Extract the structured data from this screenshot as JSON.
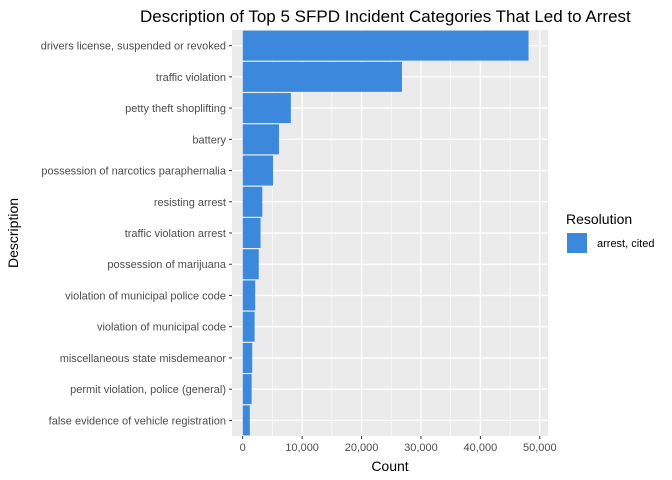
{
  "chart_data": {
    "type": "bar",
    "orientation": "horizontal",
    "title": "Description of Top 5 SFPD Incident Categories That Led to Arrest",
    "xlabel": "Count",
    "ylabel": "Description",
    "xlim": [
      0,
      50000
    ],
    "xticks": [
      0,
      10000,
      20000,
      30000,
      40000,
      50000
    ],
    "xtick_labels": [
      "0",
      "10,000",
      "20,000",
      "30,000",
      "40,000",
      "50,000"
    ],
    "categories": [
      "drivers license, suspended or revoked",
      "traffic violation",
      "petty theft shoplifting",
      "battery",
      "possession of narcotics paraphernalia",
      "resisting arrest",
      "traffic violation arrest",
      "possession of marijuana",
      "violation of municipal police code",
      "violation of municipal code",
      "miscellaneous state misdemeanor",
      "permit violation, police (general)",
      "false evidence of vehicle registration"
    ],
    "series": [
      {
        "name": "arrest, cited",
        "color": "#3b88dc",
        "values": [
          48100,
          26800,
          8100,
          6100,
          5100,
          3300,
          3000,
          2700,
          2100,
          2000,
          1600,
          1500,
          1200
        ]
      }
    ],
    "grid": true,
    "legend": {
      "title": "Resolution",
      "position": "right"
    },
    "colors": {
      "panel": "#ebebeb",
      "grid": "#ffffff"
    }
  }
}
